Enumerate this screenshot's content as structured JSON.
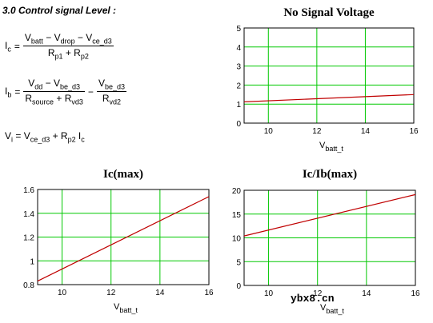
{
  "heading": "3.0 Control signal Level :",
  "equations": {
    "ic": {
      "lhs": "I",
      "lhs_sub": "c",
      "eq": "=",
      "num": [
        "V",
        "batt",
        " − V",
        "drop",
        " − V",
        "ce_d3"
      ],
      "den": [
        "R",
        "p1",
        " + R",
        "p2"
      ]
    },
    "ib": {
      "lhs": "I",
      "lhs_sub": "b",
      "eq": "=",
      "num1": [
        "V",
        "dd",
        " − V",
        "be_d3"
      ],
      "den1": [
        "R",
        "source",
        " + R",
        "vd3"
      ],
      "minus": "−",
      "num2": [
        "V",
        "be_d3"
      ],
      "den2": [
        "R",
        "vd2"
      ]
    },
    "vi": {
      "text": [
        "V",
        "i",
        " = V",
        "ce_d3",
        " + R",
        "p2",
        " I",
        "c"
      ]
    }
  },
  "watermark": "ybx8.cn",
  "colors": {
    "grid": "#00c800",
    "line": "#c00000",
    "axis": "#000000"
  },
  "chart_data": [
    {
      "type": "line",
      "title": "No Signal Voltage",
      "xlabel": "V",
      "xlabel_sub": "batt_t",
      "xlim": [
        9,
        16
      ],
      "ylim": [
        0,
        5
      ],
      "xticks": [
        10,
        12,
        14,
        16
      ],
      "yticks": [
        0,
        1,
        2,
        3,
        4,
        5
      ],
      "ytick_labels": [
        "0",
        "1",
        "2",
        "3",
        "4",
        "5"
      ],
      "grid": true,
      "series": [
        {
          "x": [
            9,
            16
          ],
          "y": [
            1.12,
            1.5
          ]
        }
      ]
    },
    {
      "type": "line",
      "title": "Ic(max)",
      "xlabel": "V",
      "xlabel_sub": "batt_t",
      "xlim": [
        9,
        16
      ],
      "ylim": [
        0.8,
        1.6
      ],
      "xticks": [
        10,
        12,
        14,
        16
      ],
      "yticks": [
        0.8,
        1.0,
        1.2,
        1.4,
        1.6
      ],
      "ytick_labels": [
        "0.8",
        "1",
        "1.2",
        "1.4",
        "1.6"
      ],
      "grid": true,
      "series": [
        {
          "x": [
            9,
            16
          ],
          "y": [
            0.83,
            1.54
          ]
        }
      ]
    },
    {
      "type": "line",
      "title": "Ic/Ib(max)",
      "xlabel": "V",
      "xlabel_sub": "batt_t",
      "xlim": [
        9,
        16
      ],
      "ylim": [
        0,
        20
      ],
      "xticks": [
        10,
        12,
        14,
        16
      ],
      "yticks": [
        0,
        5,
        10,
        15,
        20
      ],
      "ytick_labels": [
        "0",
        "5",
        "10",
        "15",
        "20"
      ],
      "grid": true,
      "series": [
        {
          "x": [
            9,
            16
          ],
          "y": [
            10.4,
            19.1
          ]
        }
      ]
    }
  ]
}
